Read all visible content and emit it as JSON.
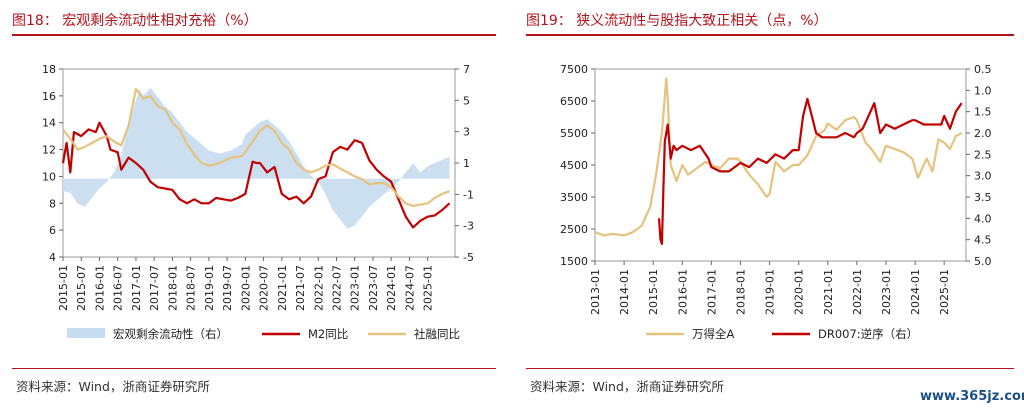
{
  "left_panel": {
    "title": "图18：  宏观剩余流动性相对充裕（%）",
    "source": "资料来源：Wind，浙商证券研究所"
  },
  "right_panel": {
    "title": "图19：  狭义流动性与股指大致正相关（点，%）",
    "source": "资料来源：Wind，浙商证券研究所"
  },
  "watermark": "www.365jz.com",
  "chart_data": [
    {
      "type": "line",
      "x_labels": [
        "2015-01",
        "2015-07",
        "2016-01",
        "2016-07",
        "2017-01",
        "2017-07",
        "2018-01",
        "2018-07",
        "2019-01",
        "2019-07",
        "2020-01",
        "2020-07",
        "2021-01",
        "2021-07",
        "2022-01",
        "2022-07",
        "2023-01",
        "2023-07",
        "2024-01",
        "2024-07",
        "2025-01"
      ],
      "y_left": {
        "min": 4,
        "max": 18,
        "ticks": [
          4,
          6,
          8,
          10,
          12,
          14,
          16,
          18
        ]
      },
      "y_right": {
        "min": -5,
        "max": 7,
        "ticks": [
          -5,
          -3,
          -1,
          1,
          3,
          5,
          7
        ]
      },
      "series": [
        {
          "name": "宏观剩余流动性（右）",
          "kind": "area",
          "axis": "right",
          "color": "#c9ddf0",
          "x": [
            2015.0,
            2015.2,
            2015.4,
            2015.6,
            2015.8,
            2016.0,
            2016.2,
            2016.4,
            2016.6,
            2016.8,
            2017.0,
            2017.1,
            2017.2,
            2017.4,
            2017.6,
            2017.8,
            2018.0,
            2018.2,
            2018.4,
            2018.6,
            2018.8,
            2019.0,
            2019.3,
            2019.6,
            2019.9,
            2020.0,
            2020.2,
            2020.4,
            2020.6,
            2020.8,
            2021.0,
            2021.2,
            2021.4,
            2021.6,
            2021.8,
            2022.0,
            2022.2,
            2022.4,
            2022.6,
            2022.8,
            2023.0,
            2023.2,
            2023.4,
            2023.6,
            2023.8,
            2024.0,
            2024.2,
            2024.4,
            2024.6,
            2024.8,
            2025.0,
            2025.2,
            2025.4,
            2025.6
          ],
          "values": [
            -0.8,
            -0.9,
            -1.6,
            -1.8,
            -1.2,
            -0.6,
            -0.2,
            0.4,
            1.5,
            3.5,
            5.0,
            5.7,
            5.3,
            5.8,
            5.2,
            4.6,
            4.2,
            3.6,
            3.0,
            2.6,
            2.2,
            1.8,
            1.6,
            1.8,
            2.2,
            2.8,
            3.2,
            3.6,
            3.8,
            3.4,
            3.0,
            2.4,
            1.6,
            0.8,
            0.2,
            -0.2,
            -1.0,
            -2.0,
            -2.6,
            -3.2,
            -3.0,
            -2.4,
            -1.8,
            -1.4,
            -1.0,
            -0.6,
            -0.2,
            0.4,
            1.0,
            0.4,
            0.8,
            1.0,
            1.2,
            1.4
          ]
        },
        {
          "name": "M2同比",
          "kind": "line",
          "axis": "left",
          "color": "#c00000",
          "x": [
            2015.0,
            2015.1,
            2015.2,
            2015.3,
            2015.5,
            2015.7,
            2015.9,
            2016.0,
            2016.1,
            2016.2,
            2016.3,
            2016.5,
            2016.6,
            2016.8,
            2017.0,
            2017.2,
            2017.4,
            2017.6,
            2017.8,
            2018.0,
            2018.2,
            2018.4,
            2018.6,
            2018.8,
            2019.0,
            2019.2,
            2019.4,
            2019.6,
            2019.8,
            2020.0,
            2020.2,
            2020.3,
            2020.4,
            2020.6,
            2020.8,
            2021.0,
            2021.2,
            2021.4,
            2021.6,
            2021.8,
            2022.0,
            2022.2,
            2022.4,
            2022.6,
            2022.8,
            2023.0,
            2023.2,
            2023.4,
            2023.6,
            2023.8,
            2024.0,
            2024.2,
            2024.4,
            2024.6,
            2024.8,
            2025.0,
            2025.2,
            2025.4,
            2025.6
          ],
          "values": [
            11.0,
            12.5,
            10.3,
            13.3,
            13.0,
            13.5,
            13.3,
            14.0,
            13.5,
            13.0,
            12.0,
            11.8,
            10.5,
            11.4,
            11.0,
            10.5,
            9.6,
            9.2,
            9.1,
            9.0,
            8.3,
            8.0,
            8.3,
            8.0,
            8.0,
            8.4,
            8.3,
            8.2,
            8.4,
            8.7,
            11.1,
            11.0,
            11.0,
            10.3,
            10.7,
            8.7,
            8.3,
            8.5,
            8.0,
            8.5,
            9.8,
            10.0,
            11.8,
            12.2,
            12.0,
            12.7,
            12.5,
            11.2,
            10.5,
            10.0,
            9.6,
            8.3,
            7.0,
            6.2,
            6.7,
            7.0,
            7.1,
            7.5,
            8.0
          ]
        },
        {
          "name": "社融同比",
          "kind": "line",
          "axis": "left",
          "color": "#e6c27f",
          "x": [
            2015.0,
            2015.2,
            2015.4,
            2015.6,
            2015.8,
            2016.0,
            2016.2,
            2016.4,
            2016.6,
            2016.8,
            2017.0,
            2017.2,
            2017.4,
            2017.6,
            2017.8,
            2018.0,
            2018.2,
            2018.4,
            2018.6,
            2018.8,
            2019.0,
            2019.3,
            2019.6,
            2019.9,
            2020.0,
            2020.2,
            2020.4,
            2020.6,
            2020.8,
            2021.0,
            2021.2,
            2021.4,
            2021.6,
            2021.8,
            2022.0,
            2022.2,
            2022.4,
            2022.6,
            2022.8,
            2023.0,
            2023.2,
            2023.4,
            2023.6,
            2023.8,
            2024.0,
            2024.2,
            2024.4,
            2024.6,
            2024.8,
            2025.0,
            2025.2,
            2025.4,
            2025.6
          ],
          "values": [
            13.5,
            12.8,
            12.0,
            12.2,
            12.5,
            12.8,
            13.0,
            12.6,
            12.3,
            13.8,
            16.5,
            15.8,
            16.0,
            15.2,
            15.0,
            14.0,
            13.5,
            12.4,
            11.6,
            11.0,
            10.8,
            11.0,
            11.4,
            11.5,
            11.8,
            12.6,
            13.4,
            13.8,
            13.4,
            12.5,
            12.0,
            11.0,
            10.5,
            10.3,
            10.5,
            10.8,
            10.9,
            10.6,
            10.3,
            10.0,
            9.8,
            9.4,
            9.5,
            9.5,
            9.2,
            8.5,
            8.0,
            7.8,
            7.9,
            8.0,
            8.4,
            8.7,
            8.9
          ]
        }
      ]
    },
    {
      "type": "line",
      "x_labels": [
        "2013-01",
        "2014-01",
        "2015-01",
        "2016-01",
        "2017-01",
        "2018-01",
        "2019-01",
        "2020-01",
        "2021-01",
        "2022-01",
        "2023-01",
        "2024-01",
        "2025-01"
      ],
      "y_left": {
        "min": 1500,
        "max": 7500,
        "ticks": [
          1500,
          2500,
          3500,
          4500,
          5500,
          6500,
          7500
        ]
      },
      "y_right": {
        "min": 0.5,
        "max": 5.0,
        "inverted": true,
        "ticks": [
          "0.5",
          "1.0",
          "1.5",
          "2.0",
          "2.5",
          "3.0",
          "3.5",
          "4.0",
          "4.5",
          "5.0"
        ]
      },
      "series": [
        {
          "name": "万得全A",
          "kind": "line",
          "axis": "left",
          "color": "#e6c27f",
          "x": [
            2013.0,
            2013.3,
            2013.6,
            2014.0,
            2014.3,
            2014.6,
            2014.9,
            2015.1,
            2015.3,
            2015.45,
            2015.5,
            2015.6,
            2015.8,
            2016.0,
            2016.2,
            2016.5,
            2016.8,
            2017.0,
            2017.3,
            2017.6,
            2017.9,
            2018.0,
            2018.3,
            2018.6,
            2018.9,
            2019.0,
            2019.2,
            2019.5,
            2019.8,
            2020.0,
            2020.3,
            2020.6,
            2020.9,
            2021.0,
            2021.3,
            2021.6,
            2021.9,
            2022.0,
            2022.3,
            2022.5,
            2022.8,
            2023.0,
            2023.3,
            2023.6,
            2023.9,
            2024.0,
            2024.1,
            2024.4,
            2024.6,
            2024.8,
            2025.0,
            2025.2,
            2025.4,
            2025.6
          ],
          "values": [
            2400,
            2300,
            2350,
            2300,
            2400,
            2600,
            3200,
            4200,
            5500,
            7200,
            6600,
            4500,
            4000,
            4500,
            4200,
            4400,
            4600,
            4500,
            4400,
            4700,
            4700,
            4600,
            4200,
            3900,
            3500,
            3600,
            4600,
            4300,
            4500,
            4500,
            4800,
            5400,
            5600,
            5800,
            5600,
            5900,
            6000,
            5900,
            5200,
            5000,
            4600,
            5100,
            5000,
            4900,
            4700,
            4400,
            4100,
            4700,
            4300,
            5300,
            5200,
            5000,
            5400,
            5500
          ]
        },
        {
          "name": "DR007:逆序（右）",
          "kind": "line",
          "axis": "right",
          "color": "#c00000",
          "x": [
            2015.2,
            2015.25,
            2015.3,
            2015.35,
            2015.4,
            2015.5,
            2015.6,
            2015.7,
            2015.8,
            2016.0,
            2016.3,
            2016.6,
            2016.9,
            2017.0,
            2017.3,
            2017.6,
            2018.0,
            2018.3,
            2018.6,
            2018.9,
            2019.2,
            2019.5,
            2019.8,
            2020.0,
            2020.15,
            2020.3,
            2020.45,
            2020.6,
            2020.8,
            2021.0,
            2021.3,
            2021.6,
            2021.9,
            2022.0,
            2022.2,
            2022.4,
            2022.6,
            2022.8,
            2023.0,
            2023.3,
            2023.6,
            2023.9,
            2024.0,
            2024.3,
            2024.6,
            2024.9,
            2025.0,
            2025.2,
            2025.4,
            2025.6
          ],
          "values": [
            4.0,
            4.5,
            4.6,
            3.3,
            2.2,
            1.8,
            2.6,
            2.3,
            2.4,
            2.3,
            2.4,
            2.3,
            2.6,
            2.8,
            2.9,
            2.9,
            2.7,
            2.8,
            2.6,
            2.7,
            2.5,
            2.6,
            2.4,
            2.4,
            1.6,
            1.2,
            1.6,
            2.0,
            2.1,
            2.1,
            2.1,
            2.0,
            2.1,
            2.0,
            1.9,
            1.6,
            1.3,
            2.0,
            1.8,
            1.9,
            1.8,
            1.7,
            1.7,
            1.8,
            1.8,
            1.8,
            1.6,
            1.9,
            1.5,
            1.3
          ]
        }
      ]
    }
  ]
}
